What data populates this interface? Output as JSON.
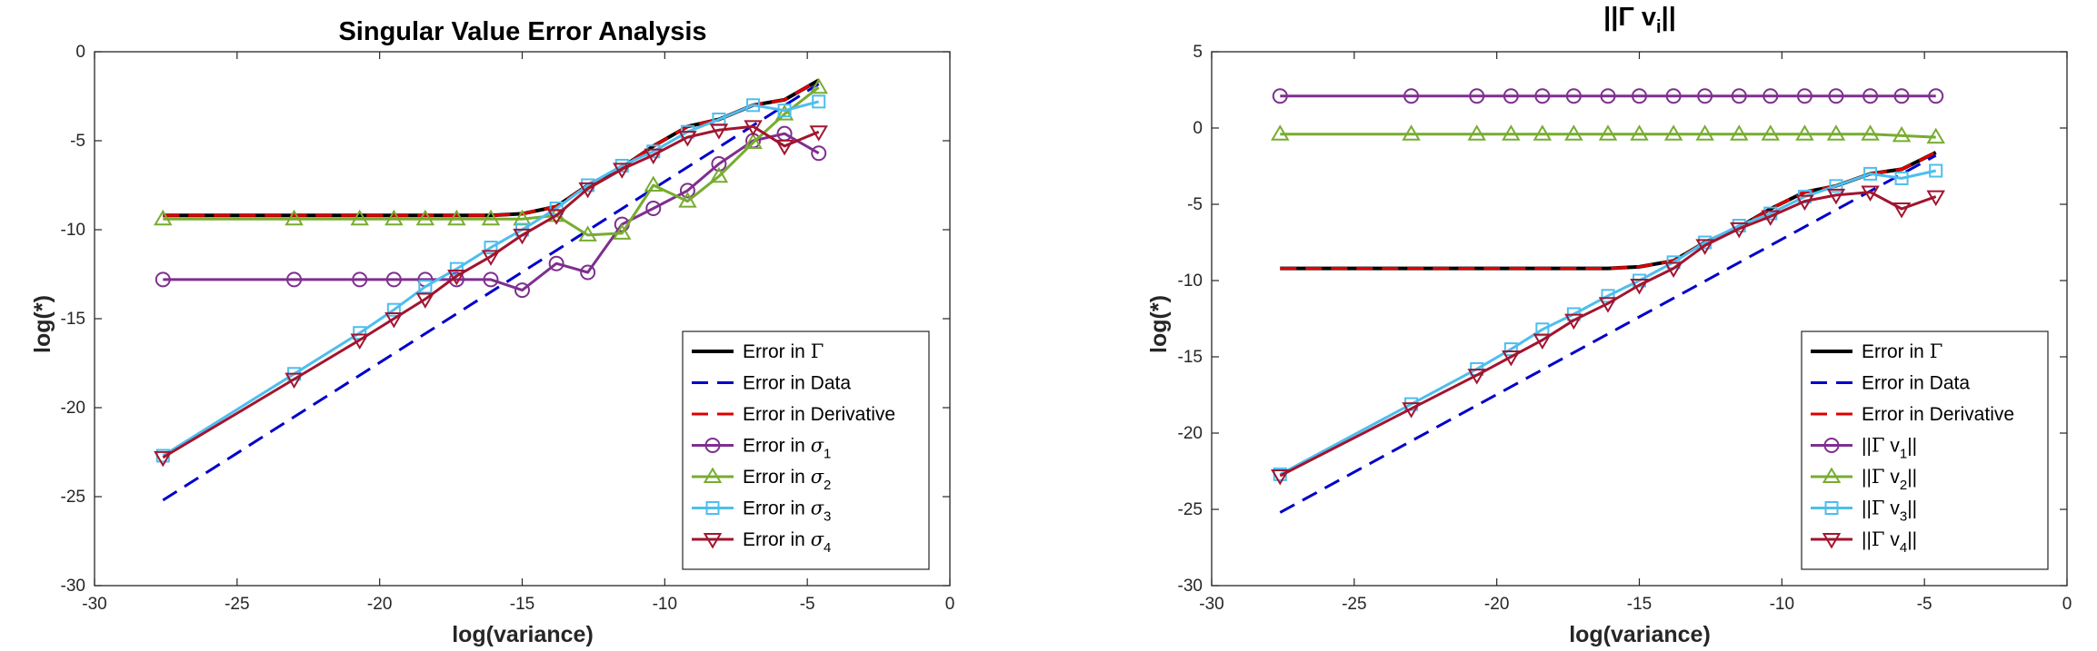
{
  "chart_data": [
    {
      "type": "line",
      "title": "Singular Value Error Analysis",
      "xlabel": "log(variance)",
      "ylabel": "log(*)",
      "xlim": [
        -30,
        0
      ],
      "ylim": [
        -30,
        0
      ],
      "xticks": [
        "-30",
        "-25",
        "-20",
        "-15",
        "-10",
        "-5",
        "0"
      ],
      "yticks": [
        "0",
        "-5",
        "-10",
        "-15",
        "-20",
        "-25",
        "-30"
      ],
      "grid": false,
      "legend_position": "bottom-right",
      "series": [
        {
          "name": "Error in Γ",
          "color": "#000000",
          "style": "solid",
          "marker": "none",
          "x": [
            -27.6,
            -23,
            -20.7,
            -19.5,
            -18.4,
            -17.3,
            -16.1,
            -15,
            -13.8,
            -12.7,
            -11.5,
            -10.4,
            -9.2,
            -8.1,
            -6.9,
            -5.8,
            -4.6
          ],
          "y": [
            -9.2,
            -9.2,
            -9.2,
            -9.2,
            -9.2,
            -9.2,
            -9.2,
            -9.1,
            -8.7,
            -7.5,
            -6.5,
            -5.3,
            -4.2,
            -3.8,
            -3.0,
            -2.7,
            -1.6
          ]
        },
        {
          "name": "Error in Data",
          "color": "#0000cc",
          "style": "dashed",
          "marker": "none",
          "x": [
            -27.6,
            -4.6
          ],
          "y": [
            -25.2,
            -1.8
          ]
        },
        {
          "name": "Error in Derivative",
          "color": "#dd0000",
          "style": "dashed",
          "marker": "none",
          "x": [
            -27.6,
            -23,
            -20.7,
            -19.5,
            -18.4,
            -17.3,
            -16.1,
            -15,
            -13.8,
            -12.7,
            -11.5,
            -10.4,
            -9.2,
            -8.1,
            -6.9,
            -5.8,
            -4.6
          ],
          "y": [
            -9.2,
            -9.2,
            -9.2,
            -9.2,
            -9.2,
            -9.2,
            -9.2,
            -9.1,
            -8.7,
            -7.5,
            -6.5,
            -5.3,
            -4.2,
            -3.8,
            -3.0,
            -2.7,
            -1.6
          ]
        },
        {
          "name": "Error in σ1",
          "color": "#7e2f8e",
          "style": "solid",
          "marker": "circle",
          "x": [
            -27.6,
            -23,
            -20.7,
            -19.5,
            -18.4,
            -17.3,
            -16.1,
            -15,
            -13.8,
            -12.7,
            -11.5,
            -10.4,
            -9.2,
            -8.1,
            -6.9,
            -5.8,
            -4.6
          ],
          "y": [
            -12.8,
            -12.8,
            -12.8,
            -12.8,
            -12.8,
            -12.8,
            -12.8,
            -13.4,
            -11.9,
            -12.4,
            -9.7,
            -8.8,
            -7.8,
            -6.3,
            -5.0,
            -4.6,
            -5.7
          ]
        },
        {
          "name": "Error in σ2",
          "color": "#77ac30",
          "style": "solid",
          "marker": "triangle-up",
          "x": [
            -27.6,
            -23,
            -20.7,
            -19.5,
            -18.4,
            -17.3,
            -16.1,
            -15,
            -13.8,
            -12.7,
            -11.5,
            -10.4,
            -9.2,
            -8.1,
            -6.9,
            -5.8,
            -4.6
          ],
          "y": [
            -9.4,
            -9.4,
            -9.4,
            -9.4,
            -9.4,
            -9.4,
            -9.4,
            -9.4,
            -9.2,
            -10.3,
            -10.2,
            -7.5,
            -8.4,
            -7.0,
            -5.1,
            -3.5,
            -2.0
          ]
        },
        {
          "name": "Error in σ3",
          "color": "#4dbeee",
          "style": "solid",
          "marker": "square",
          "x": [
            -27.6,
            -23,
            -20.7,
            -19.5,
            -18.4,
            -17.3,
            -16.1,
            -15,
            -13.8,
            -12.7,
            -11.5,
            -10.4,
            -9.2,
            -8.1,
            -6.9,
            -5.8,
            -4.6
          ],
          "y": [
            -22.7,
            -18.1,
            -15.8,
            -14.5,
            -13.2,
            -12.2,
            -11.0,
            -10.0,
            -8.8,
            -7.5,
            -6.4,
            -5.6,
            -4.5,
            -3.8,
            -3.0,
            -3.3,
            -2.8
          ]
        },
        {
          "name": "Error in σ4",
          "color": "#a2142f",
          "style": "solid",
          "marker": "triangle-down",
          "x": [
            -27.6,
            -23,
            -20.7,
            -19.5,
            -18.4,
            -17.3,
            -16.1,
            -15,
            -13.8,
            -12.7,
            -11.5,
            -10.4,
            -9.2,
            -8.1,
            -6.9,
            -5.8,
            -4.6
          ],
          "y": [
            -22.8,
            -18.4,
            -16.2,
            -15.0,
            -13.9,
            -12.6,
            -11.5,
            -10.3,
            -9.2,
            -7.7,
            -6.6,
            -5.8,
            -4.8,
            -4.4,
            -4.2,
            -5.3,
            -4.5
          ]
        }
      ]
    },
    {
      "type": "line",
      "title": "||Γ v_i||",
      "title_main": "||Γ v",
      "title_sub": "i",
      "title_end": "||",
      "xlabel": "log(variance)",
      "ylabel": "log(*)",
      "xlim": [
        -30,
        0
      ],
      "ylim": [
        -30,
        5
      ],
      "xticks": [
        "-30",
        "-25",
        "-20",
        "-15",
        "-10",
        "-5",
        "0"
      ],
      "yticks": [
        "5",
        "0",
        "-5",
        "-10",
        "-15",
        "-20",
        "-25",
        "-30"
      ],
      "grid": false,
      "legend_position": "bottom-right",
      "series": [
        {
          "name": "Error in Γ",
          "color": "#000000",
          "style": "solid",
          "marker": "none",
          "x": [
            -27.6,
            -23,
            -20.7,
            -19.5,
            -18.4,
            -17.3,
            -16.1,
            -15,
            -13.8,
            -12.7,
            -11.5,
            -10.4,
            -9.2,
            -8.1,
            -6.9,
            -5.8,
            -4.6
          ],
          "y": [
            -9.2,
            -9.2,
            -9.2,
            -9.2,
            -9.2,
            -9.2,
            -9.2,
            -9.1,
            -8.7,
            -7.5,
            -6.5,
            -5.3,
            -4.2,
            -3.8,
            -3.0,
            -2.7,
            -1.6
          ]
        },
        {
          "name": "Error in Data",
          "color": "#0000cc",
          "style": "dashed",
          "marker": "none",
          "x": [
            -27.6,
            -4.6
          ],
          "y": [
            -25.2,
            -1.8
          ]
        },
        {
          "name": "Error in Derivative",
          "color": "#dd0000",
          "style": "dashed",
          "marker": "none",
          "x": [
            -27.6,
            -23,
            -20.7,
            -19.5,
            -18.4,
            -17.3,
            -16.1,
            -15,
            -13.8,
            -12.7,
            -11.5,
            -10.4,
            -9.2,
            -8.1,
            -6.9,
            -5.8,
            -4.6
          ],
          "y": [
            -9.2,
            -9.2,
            -9.2,
            -9.2,
            -9.2,
            -9.2,
            -9.2,
            -9.1,
            -8.7,
            -7.5,
            -6.5,
            -5.3,
            -4.2,
            -3.8,
            -3.0,
            -2.7,
            -1.6
          ]
        },
        {
          "name": "||Γ v1||",
          "color": "#7e2f8e",
          "style": "solid",
          "marker": "circle",
          "x": [
            -27.6,
            -23,
            -20.7,
            -19.5,
            -18.4,
            -17.3,
            -16.1,
            -15,
            -13.8,
            -12.7,
            -11.5,
            -10.4,
            -9.2,
            -8.1,
            -6.9,
            -5.8,
            -4.6
          ],
          "y": [
            2.1,
            2.1,
            2.1,
            2.1,
            2.1,
            2.1,
            2.1,
            2.1,
            2.1,
            2.1,
            2.1,
            2.1,
            2.1,
            2.1,
            2.1,
            2.1,
            2.1
          ]
        },
        {
          "name": "||Γ v2||",
          "color": "#77ac30",
          "style": "solid",
          "marker": "triangle-up",
          "x": [
            -27.6,
            -23,
            -20.7,
            -19.5,
            -18.4,
            -17.3,
            -16.1,
            -15,
            -13.8,
            -12.7,
            -11.5,
            -10.4,
            -9.2,
            -8.1,
            -6.9,
            -5.8,
            -4.6
          ],
          "y": [
            -0.4,
            -0.4,
            -0.4,
            -0.4,
            -0.4,
            -0.4,
            -0.4,
            -0.4,
            -0.4,
            -0.4,
            -0.4,
            -0.4,
            -0.4,
            -0.4,
            -0.4,
            -0.5,
            -0.6
          ]
        },
        {
          "name": "||Γ v3||",
          "color": "#4dbeee",
          "style": "solid",
          "marker": "square",
          "x": [
            -27.6,
            -23,
            -20.7,
            -19.5,
            -18.4,
            -17.3,
            -16.1,
            -15,
            -13.8,
            -12.7,
            -11.5,
            -10.4,
            -9.2,
            -8.1,
            -6.9,
            -5.8,
            -4.6
          ],
          "y": [
            -22.7,
            -18.1,
            -15.8,
            -14.5,
            -13.2,
            -12.2,
            -11.0,
            -10.0,
            -8.8,
            -7.5,
            -6.4,
            -5.6,
            -4.5,
            -3.8,
            -3.0,
            -3.3,
            -2.8
          ]
        },
        {
          "name": "||Γ v4||",
          "color": "#a2142f",
          "style": "solid",
          "marker": "triangle-down",
          "x": [
            -27.6,
            -23,
            -20.7,
            -19.5,
            -18.4,
            -17.3,
            -16.1,
            -15,
            -13.8,
            -12.7,
            -11.5,
            -10.4,
            -9.2,
            -8.1,
            -6.9,
            -5.8,
            -4.6
          ],
          "y": [
            -22.8,
            -18.4,
            -16.2,
            -15.0,
            -13.9,
            -12.6,
            -11.5,
            -10.3,
            -9.2,
            -7.7,
            -6.6,
            -5.8,
            -4.8,
            -4.4,
            -4.2,
            -5.3,
            -4.5
          ]
        }
      ]
    }
  ],
  "legends": [
    [
      {
        "main": "Error in ",
        "greek": "Γ",
        "sub": ""
      },
      {
        "main": "Error in Data",
        "greek": "",
        "sub": ""
      },
      {
        "main": "Error in Derivative",
        "greek": "",
        "sub": ""
      },
      {
        "main": "Error in ",
        "greek": "σ",
        "sub": "1"
      },
      {
        "main": "Error in ",
        "greek": "σ",
        "sub": "2"
      },
      {
        "main": "Error in ",
        "greek": "σ",
        "sub": "3"
      },
      {
        "main": "Error in ",
        "greek": "σ",
        "sub": "4"
      }
    ],
    [
      {
        "main": "Error in ",
        "greek": "Γ",
        "sub": "",
        "end": ""
      },
      {
        "main": "Error in Data",
        "greek": "",
        "sub": "",
        "end": ""
      },
      {
        "main": "Error in Derivative",
        "greek": "",
        "sub": "",
        "end": ""
      },
      {
        "main": "||",
        "greek": "Γ",
        "after": " v",
        "sub": "1",
        "end": "||"
      },
      {
        "main": "||",
        "greek": "Γ",
        "after": " v",
        "sub": "2",
        "end": "||"
      },
      {
        "main": "||",
        "greek": "Γ",
        "after": " v",
        "sub": "3",
        "end": "||"
      },
      {
        "main": "||",
        "greek": "Γ",
        "after": " v",
        "sub": "4",
        "end": "||"
      }
    ]
  ]
}
